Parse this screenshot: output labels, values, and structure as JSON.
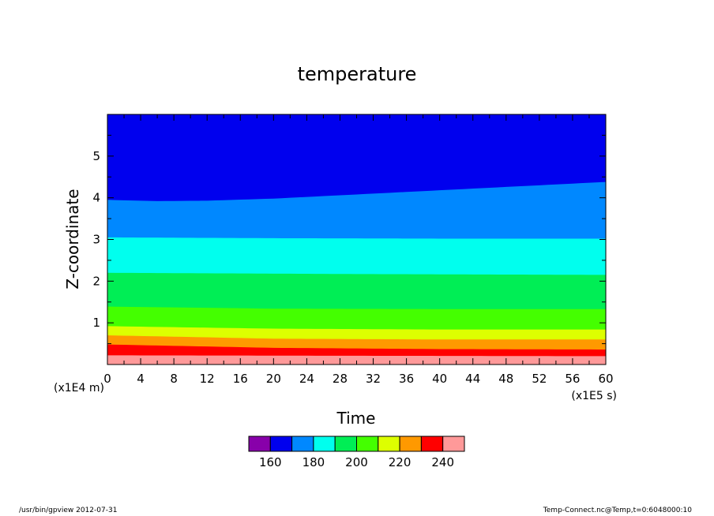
{
  "chart_data": {
    "type": "heatmap",
    "title": "temperature",
    "xlabel": "Time",
    "ylabel": "Z-coordinate",
    "x_unit_label": "(x1E5 s)",
    "y_unit_label": "(x1E4 m)",
    "xlim": [
      0,
      60
    ],
    "ylim": [
      0,
      6
    ],
    "x_ticks": [
      "0",
      "4",
      "8",
      "12",
      "16",
      "20",
      "24",
      "28",
      "32",
      "36",
      "40",
      "44",
      "48",
      "52",
      "56",
      "60"
    ],
    "y_ticks": [
      "1",
      "2",
      "3",
      "4",
      "5"
    ],
    "colorbar_ticks": [
      "160",
      "180",
      "200",
      "220",
      "240"
    ],
    "levels": [
      {
        "color": "#8800aa",
        "min": 150,
        "max": 160
      },
      {
        "color": "#0000ee",
        "min": 160,
        "max": 170
      },
      {
        "color": "#0088ff",
        "min": 170,
        "max": 180
      },
      {
        "color": "#00ffee",
        "min": 180,
        "max": 190
      },
      {
        "color": "#00ee55",
        "min": 190,
        "max": 200
      },
      {
        "color": "#44ff00",
        "min": 200,
        "max": 210
      },
      {
        "color": "#ddff00",
        "min": 210,
        "max": 220
      },
      {
        "color": "#ff9900",
        "min": 220,
        "max": 230
      },
      {
        "color": "#ff0000",
        "min": 230,
        "max": 240
      },
      {
        "color": "#ff9999",
        "min": 240,
        "max": 250
      }
    ],
    "contour_boundaries": [
      {
        "below_color": "#ff9999",
        "x": [
          0,
          60
        ],
        "z": [
          0.22,
          0.2
        ]
      },
      {
        "below_color": "#ff0000",
        "x": [
          0,
          20,
          40,
          60
        ],
        "z": [
          0.48,
          0.4,
          0.37,
          0.36
        ]
      },
      {
        "below_color": "#ff9900",
        "x": [
          0,
          20,
          40,
          60
        ],
        "z": [
          0.7,
          0.62,
          0.6,
          0.6
        ]
      },
      {
        "below_color": "#ddff00",
        "x": [
          0,
          20,
          40,
          60
        ],
        "z": [
          0.92,
          0.86,
          0.84,
          0.84
        ]
      },
      {
        "below_color": "#44ff00",
        "x": [
          0,
          20,
          40,
          60
        ],
        "z": [
          1.39,
          1.34,
          1.33,
          1.33
        ]
      },
      {
        "below_color": "#00ee55",
        "x": [
          0,
          30,
          60
        ],
        "z": [
          2.2,
          2.17,
          2.15
        ]
      },
      {
        "below_color": "#00ffee",
        "x": [
          0,
          20,
          40,
          60
        ],
        "z": [
          3.05,
          3.03,
          3.02,
          3.02
        ]
      },
      {
        "below_color": "#0088ff",
        "x": [
          0,
          6,
          12,
          20,
          30,
          40,
          50,
          60
        ],
        "z": [
          3.95,
          3.92,
          3.93,
          3.98,
          4.08,
          4.18,
          4.28,
          4.38
        ]
      }
    ],
    "top_color": "#0000ee"
  },
  "footer": {
    "left": "/usr/bin/gpview   2012-07-31",
    "right": "Temp-Connect.nc@Temp,t=0:6048000:10"
  }
}
